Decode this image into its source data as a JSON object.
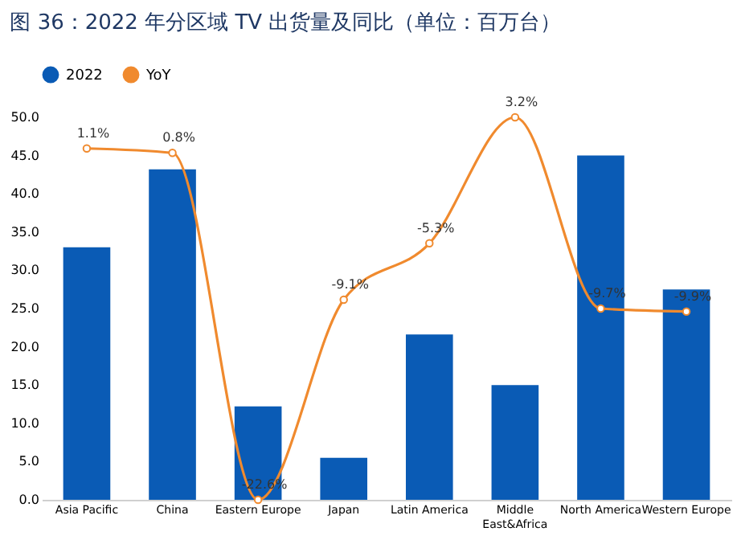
{
  "chart_data": {
    "type": "bar",
    "title": "图 36：2022 年分区域 TV 出货量及同比（单位：百万台）",
    "categories": [
      "Asia Pacific",
      "China",
      "Eastern Europe",
      "Japan",
      "Latin America",
      "Middle East&Africa",
      "North America",
      "Western Europe"
    ],
    "series": [
      {
        "name": "2022",
        "type": "bar",
        "color": "#0a5bb5",
        "values": [
          33.0,
          43.2,
          12.2,
          5.5,
          21.6,
          15.0,
          45.0,
          27.5
        ]
      },
      {
        "name": "YoY",
        "type": "line",
        "axis": "y2",
        "color": "#f08a2e",
        "values": [
          1.1,
          0.8,
          -22.6,
          -9.1,
          -5.3,
          3.2,
          -9.7,
          -9.9
        ],
        "value_labels": [
          "1.1%",
          "0.8%",
          "-22.6%",
          "-9.1%",
          "-5.3%",
          "3.2%",
          "-9.7%",
          "-9.9%"
        ]
      }
    ],
    "ylim": [
      0,
      50
    ],
    "yticks": [
      {
        "value": 0,
        "label": "0.0"
      },
      {
        "value": 5,
        "label": "5.0"
      },
      {
        "value": 10,
        "label": "10.0"
      },
      {
        "value": 15,
        "label": "15.0"
      },
      {
        "value": 20,
        "label": "20.0"
      },
      {
        "value": 25,
        "label": "25.0"
      },
      {
        "value": 30,
        "label": "30.0"
      },
      {
        "value": 35,
        "label": "35.0"
      },
      {
        "value": 40,
        "label": "40.0"
      },
      {
        "value": 45,
        "label": "45.0"
      },
      {
        "value": 50,
        "label": "50.0"
      }
    ],
    "grid": false,
    "legend": "top",
    "marker": "circle",
    "line_style": "solid"
  }
}
